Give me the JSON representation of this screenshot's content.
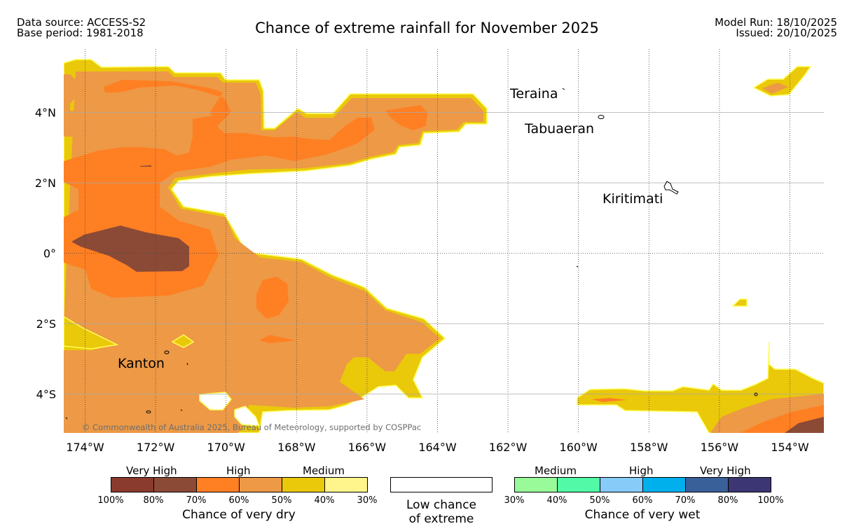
{
  "header": {
    "source_line": "Data source: ACCESS-S2",
    "base_line": "Base period: 1981-2018",
    "title": "Chance of extreme rainfall for November 2025",
    "model_run": "Model Run: 18/10/2025",
    "issued": "Issued: 20/10/2025"
  },
  "map": {
    "lon_ticks": [
      "174°W",
      "172°W",
      "170°W",
      "168°W",
      "166°W",
      "164°W",
      "162°W",
      "160°W",
      "158°W",
      "156°W",
      "154°W"
    ],
    "lat_ticks": [
      "4°N",
      "2°N",
      "0°",
      "2°S",
      "4°S"
    ],
    "places": {
      "teraina": "Teraina",
      "tabuaeran": "Tabuaeran",
      "kiritimati": "Kiritimati",
      "kanton": "Kanton"
    },
    "copyright": "© Commonwealth of Australia 2025, Bureau of Meteorology, supported by COSPPac"
  },
  "colors": {
    "dry_100_80": "#8b3a2e",
    "dry_80_70": "#8b4a36",
    "dry_70_60": "#ff7f23",
    "dry_60_50": "#ed9946",
    "dry_50_40": "#eac80a",
    "dry_40_30": "#fff58c",
    "wet_30_40": "#98fa98",
    "wet_40_50": "#52f9a6",
    "wet_50_60": "#87cbf8",
    "wet_60_70": "#00b0ed",
    "wet_70_80": "#3a609a",
    "wet_80_100": "#3c3674"
  },
  "legend": {
    "dry": {
      "categories": [
        "Very High",
        "High",
        "Medium"
      ],
      "ticks": [
        "100%",
        "80%",
        "70%",
        "60%",
        "50%",
        "40%",
        "30%"
      ],
      "label": "Chance of very dry"
    },
    "low": {
      "line1": "Low chance",
      "line2": "of extreme"
    },
    "wet": {
      "categories": [
        "Medium",
        "High",
        "Very High"
      ],
      "ticks": [
        "30%",
        "40%",
        "50%",
        "60%",
        "70%",
        "80%",
        "100%"
      ],
      "label": "Chance of very wet"
    }
  }
}
